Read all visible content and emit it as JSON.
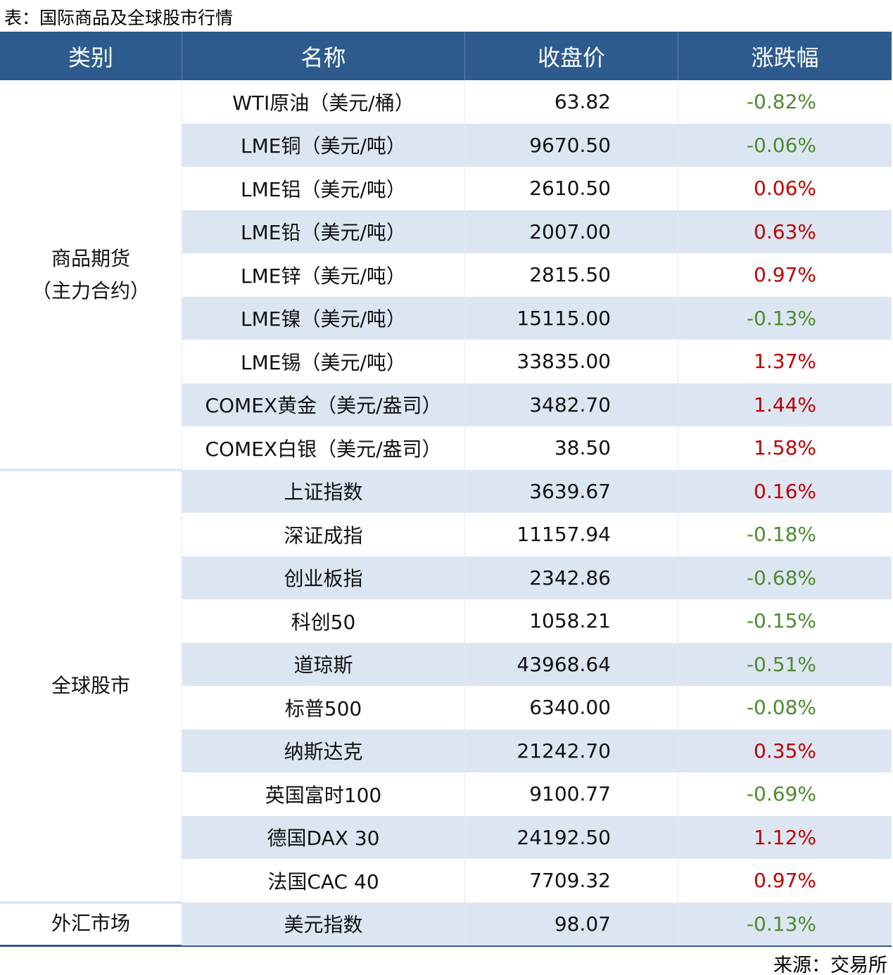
{
  "title": "表：国际商品及全球股市行情",
  "table": {
    "header": [
      "类别",
      "名称",
      "收盘价",
      "涨跌幅"
    ],
    "groups": [
      {
        "category": "商品期货\n（主力合约）",
        "rows": [
          [
            "WTI原油（美元/桶）",
            "63.82",
            "-0.82%"
          ],
          [
            "LME铜（美元/吨）",
            "9670.50",
            "-0.06%"
          ],
          [
            "LME铝（美元/吨）",
            "2610.50",
            "0.06%"
          ],
          [
            "LME铅（美元/吨）",
            "2007.00",
            "0.63%"
          ],
          [
            "LME锌（美元/吨）",
            "2815.50",
            "0.97%"
          ],
          [
            "LME镍（美元/吨）",
            "15115.00",
            "-0.13%"
          ],
          [
            "LME锡（美元/吨）",
            "33835.00",
            "1.37%"
          ],
          [
            "COMEX黄金（美元/盎司）",
            "3482.70",
            "1.44%"
          ],
          [
            "COMEX白银（美元/盎司）",
            "38.50",
            "1.58%"
          ]
        ]
      },
      {
        "category": "全球股市",
        "rows": [
          [
            "上证指数",
            "3639.67",
            "0.16%"
          ],
          [
            "深证成指",
            "11157.94",
            "-0.18%"
          ],
          [
            "创业板指",
            "2342.86",
            "-0.68%"
          ],
          [
            "科创50",
            "1058.21",
            "-0.15%"
          ],
          [
            "道琼斯",
            "43968.64",
            "-0.51%"
          ],
          [
            "标普500",
            "6340.00",
            "-0.08%"
          ],
          [
            "纳斯达克",
            "21242.70",
            "0.35%"
          ],
          [
            "英国富时100",
            "9100.77",
            "-0.69%"
          ],
          [
            "德国DAX 30",
            "24192.50",
            "1.12%"
          ],
          [
            "法国CAC 40",
            "7709.32",
            "0.97%"
          ]
        ]
      },
      {
        "category": "外汇市场",
        "rows": [
          [
            "美元指数",
            "98.07",
            "-0.13%"
          ]
        ]
      }
    ]
  },
  "source": "来源：交易所"
}
